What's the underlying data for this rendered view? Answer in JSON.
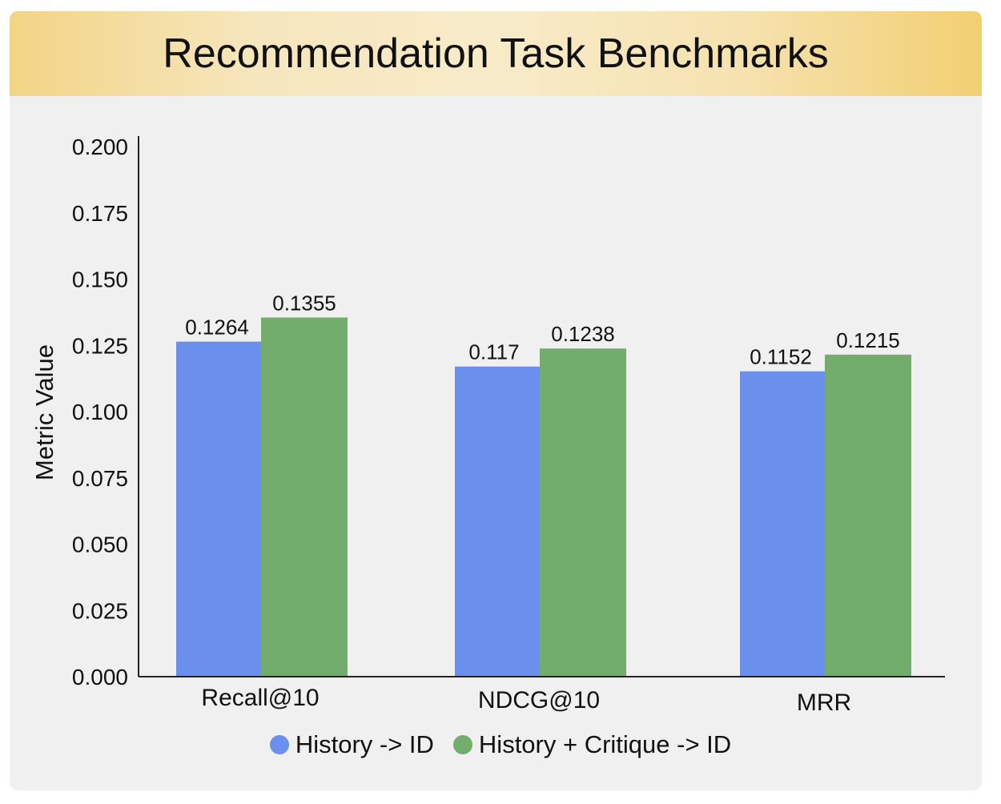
{
  "chart_data": {
    "type": "bar",
    "title": "Recommendation Task Benchmarks",
    "ylabel": "Metric Value",
    "xlabel": "",
    "categories": [
      "Recall@10",
      "NDCG@10",
      "MRR"
    ],
    "series": [
      {
        "name": "History -> ID",
        "values": [
          0.1264,
          0.117,
          0.1152
        ],
        "labels": [
          "0.1264",
          "0.117",
          "0.1152"
        ],
        "color": "#6a8fec"
      },
      {
        "name": "History + Critique -> ID",
        "values": [
          0.1355,
          0.1238,
          0.1215
        ],
        "labels": [
          "0.1355",
          "0.1238",
          "0.1215"
        ],
        "color": "#72ad6b"
      }
    ],
    "ylim": [
      0,
      0.2
    ],
    "yticks": [
      "0.000",
      "0.025",
      "0.050",
      "0.075",
      "0.100",
      "0.125",
      "0.150",
      "0.175",
      "0.200"
    ],
    "legend_position": "bottom-center",
    "grid": false
  }
}
